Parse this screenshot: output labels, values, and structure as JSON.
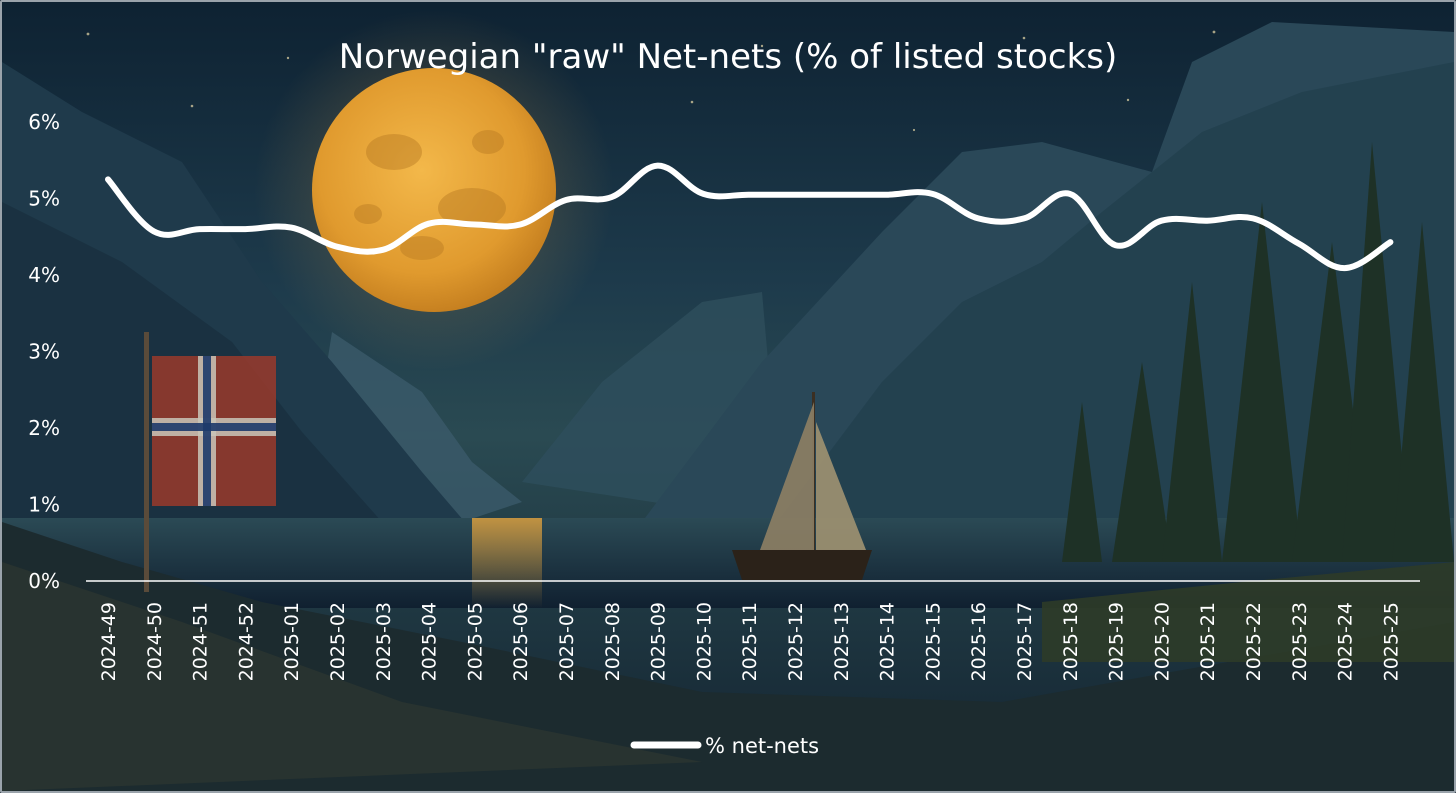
{
  "chart_data": {
    "type": "line",
    "title": "Norwegian \"raw\" Net-nets (% of listed stocks)",
    "xlabel": "",
    "ylabel": "",
    "categories": [
      "2024-49",
      "2024-50",
      "2024-51",
      "2024-52",
      "2025-01",
      "2025-02",
      "2025-03",
      "2025-04",
      "2025-05",
      "2025-06",
      "2025-07",
      "2025-08",
      "2025-09",
      "2025-10",
      "2025-11",
      "2025-12",
      "2025-13",
      "2025-14",
      "2025-15",
      "2025-16",
      "2025-17",
      "2025-18",
      "2025-19",
      "2025-20",
      "2025-21",
      "2025-22",
      "2025-23",
      "2025-24",
      "2025-25"
    ],
    "series": [
      {
        "name": "% net-nets",
        "color": "#ffffff",
        "values": [
          5.25,
          4.57,
          4.6,
          4.6,
          4.62,
          4.37,
          4.33,
          4.67,
          4.66,
          4.66,
          4.98,
          5.02,
          5.43,
          5.06,
          5.05,
          5.05,
          5.05,
          5.05,
          5.06,
          4.74,
          4.74,
          5.06,
          4.39,
          4.71,
          4.71,
          4.74,
          4.41,
          4.09,
          4.43
        ]
      }
    ],
    "ylim": [
      0,
      6
    ],
    "yticks": [
      0,
      1,
      2,
      3,
      4,
      5,
      6
    ],
    "ytick_labels": [
      "0%",
      "1%",
      "2%",
      "3%",
      "4%",
      "5%",
      "6%"
    ],
    "grid": false,
    "legend_position": "bottom",
    "background": "painted moonlit Norwegian fjord with sailboat, flag and pine trees"
  }
}
